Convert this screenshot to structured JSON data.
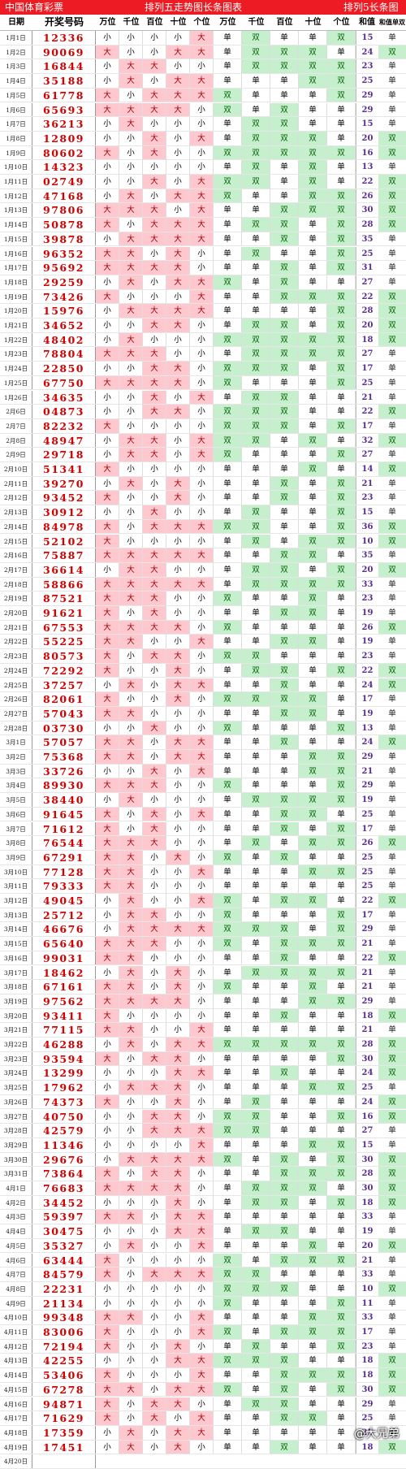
{
  "header": {
    "left": "中国体育彩票",
    "center": "排列五走势图长条图表",
    "right": "排列5长条图"
  },
  "columns": {
    "date": "日期",
    "number": "开奖号码",
    "size": [
      "万位",
      "千位",
      "百位",
      "十位",
      "个位"
    ],
    "parity": [
      "万位",
      "千位",
      "百位",
      "十位",
      "个位"
    ],
    "sum": "和值",
    "sum_parity": "和值单双"
  },
  "rows": [
    {
      "date": "1月1日",
      "num": "12336"
    },
    {
      "date": "1月2日",
      "num": "90069"
    },
    {
      "date": "1月3日",
      "num": "16844"
    },
    {
      "date": "1月4日",
      "num": "35188"
    },
    {
      "date": "1月5日",
      "num": "61778"
    },
    {
      "date": "1月6日",
      "num": "65693"
    },
    {
      "date": "1月7日",
      "num": "36213"
    },
    {
      "date": "1月8日",
      "num": "12809"
    },
    {
      "date": "1月9日",
      "num": "80602"
    },
    {
      "date": "1月10日",
      "num": "14323"
    },
    {
      "date": "1月11日",
      "num": "02749"
    },
    {
      "date": "1月12日",
      "num": "47168"
    },
    {
      "date": "1月13日",
      "num": "97806"
    },
    {
      "date": "1月14日",
      "num": "50878"
    },
    {
      "date": "1月15日",
      "num": "39878"
    },
    {
      "date": "1月16日",
      "num": "96352"
    },
    {
      "date": "1月17日",
      "num": "95692"
    },
    {
      "date": "1月18日",
      "num": "29259"
    },
    {
      "date": "1月19日",
      "num": "73426"
    },
    {
      "date": "1月20日",
      "num": "15976"
    },
    {
      "date": "1月21日",
      "num": "34652"
    },
    {
      "date": "1月22日",
      "num": "48402"
    },
    {
      "date": "1月23日",
      "num": "78804"
    },
    {
      "date": "1月24日",
      "num": "22850"
    },
    {
      "date": "1月25日",
      "num": "67750"
    },
    {
      "date": "1月26日",
      "num": "34635"
    },
    {
      "date": "2月6日",
      "num": "04873"
    },
    {
      "date": "2月7日",
      "num": "82232"
    },
    {
      "date": "2月8日",
      "num": "48947"
    },
    {
      "date": "2月9日",
      "num": "29718"
    },
    {
      "date": "2月10日",
      "num": "51341"
    },
    {
      "date": "2月11日",
      "num": "39270"
    },
    {
      "date": "2月12日",
      "num": "93452"
    },
    {
      "date": "2月13日",
      "num": "30912"
    },
    {
      "date": "2月14日",
      "num": "84978"
    },
    {
      "date": "2月15日",
      "num": "52102"
    },
    {
      "date": "2月16日",
      "num": "75887"
    },
    {
      "date": "2月17日",
      "num": "36614"
    },
    {
      "date": "2月18日",
      "num": "58866"
    },
    {
      "date": "2月19日",
      "num": "87521"
    },
    {
      "date": "2月20日",
      "num": "91621"
    },
    {
      "date": "2月21日",
      "num": "67553"
    },
    {
      "date": "2月22日",
      "num": "55225"
    },
    {
      "date": "2月23日",
      "num": "80573"
    },
    {
      "date": "2月24日",
      "num": "72292"
    },
    {
      "date": "2月25日",
      "num": "37257"
    },
    {
      "date": "2月26日",
      "num": "82061"
    },
    {
      "date": "2月27日",
      "num": "57043"
    },
    {
      "date": "2月28日",
      "num": "03730"
    },
    {
      "date": "3月1日",
      "num": "57057"
    },
    {
      "date": "3月2日",
      "num": "75368"
    },
    {
      "date": "3月3日",
      "num": "33726"
    },
    {
      "date": "3月4日",
      "num": "89930"
    },
    {
      "date": "3月5日",
      "num": "38440"
    },
    {
      "date": "3月6日",
      "num": "91645"
    },
    {
      "date": "3月7日",
      "num": "71612"
    },
    {
      "date": "3月8日",
      "num": "76544"
    },
    {
      "date": "3月9日",
      "num": "67291"
    },
    {
      "date": "3月10日",
      "num": "77128"
    },
    {
      "date": "3月11日",
      "num": "79333"
    },
    {
      "date": "3月12日",
      "num": "49045"
    },
    {
      "date": "3月13日",
      "num": "25712"
    },
    {
      "date": "3月14日",
      "num": "46676"
    },
    {
      "date": "3月15日",
      "num": "65640"
    },
    {
      "date": "3月16日",
      "num": "99031"
    },
    {
      "date": "3月17日",
      "num": "18462"
    },
    {
      "date": "3月18日",
      "num": "67161"
    },
    {
      "date": "3月19日",
      "num": "97562"
    },
    {
      "date": "3月20日",
      "num": "93411"
    },
    {
      "date": "3月21日",
      "num": "77115"
    },
    {
      "date": "3月22日",
      "num": "46288"
    },
    {
      "date": "3月23日",
      "num": "93594"
    },
    {
      "date": "3月24日",
      "num": "13299"
    },
    {
      "date": "3月25日",
      "num": "17962"
    },
    {
      "date": "3月26日",
      "num": "74373"
    },
    {
      "date": "3月27日",
      "num": "40750"
    },
    {
      "date": "3月28日",
      "num": "42579"
    },
    {
      "date": "3月29日",
      "num": "11346"
    },
    {
      "date": "3月30日",
      "num": "29676"
    },
    {
      "date": "3月31日",
      "num": "73864"
    },
    {
      "date": "4月1日",
      "num": "76683"
    },
    {
      "date": "4月2日",
      "num": "34452"
    },
    {
      "date": "4月3日",
      "num": "59397"
    },
    {
      "date": "4月4日",
      "num": "30475"
    },
    {
      "date": "4月5日",
      "num": "35327"
    },
    {
      "date": "4月6日",
      "num": "63444"
    },
    {
      "date": "4月7日",
      "num": "84579"
    },
    {
      "date": "4月8日",
      "num": "22231"
    },
    {
      "date": "4月9日",
      "num": "21134"
    },
    {
      "date": "4月10日",
      "num": "99348"
    },
    {
      "date": "4月11日",
      "num": "83006"
    },
    {
      "date": "4月12日",
      "num": "72194"
    },
    {
      "date": "4月13日",
      "num": "42255"
    },
    {
      "date": "4月14日",
      "num": "53406"
    },
    {
      "date": "4月15日",
      "num": "67278"
    },
    {
      "date": "4月16日",
      "num": "94871"
    },
    {
      "date": "4月17日",
      "num": "71629"
    },
    {
      "date": "4月18日",
      "num": "17359"
    },
    {
      "date": "4月19日",
      "num": "17451"
    },
    {
      "date": "4月20日",
      "num": ""
    }
  ],
  "labels": {
    "big": "大",
    "small": "小",
    "odd": "单",
    "even": "双"
  },
  "colors": {
    "header": "#ed1c24",
    "big": "#ffc7ce",
    "even": "#c6efce",
    "number": "#d40000",
    "sum": "#5a2d91"
  },
  "watermark": "@大兄弟"
}
